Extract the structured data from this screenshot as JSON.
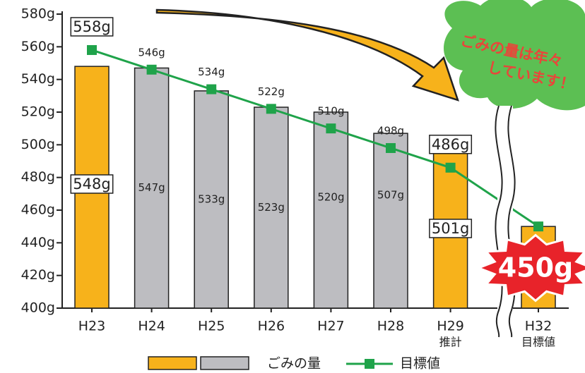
{
  "chart_data": {
    "type": "bar",
    "categories": [
      "H23",
      "H24",
      "H25",
      "H26",
      "H27",
      "H28",
      "H29",
      "H32"
    ],
    "category_sublabels": [
      null,
      null,
      null,
      null,
      null,
      null,
      "推計",
      "目標値"
    ],
    "ylim": [
      400,
      580
    ],
    "yticks": [
      {
        "value": 400,
        "label": "400g"
      },
      {
        "value": 420,
        "label": "420g"
      },
      {
        "value": 440,
        "label": "440g"
      },
      {
        "value": 460,
        "label": "460g"
      },
      {
        "value": 480,
        "label": "480g"
      },
      {
        "value": 500,
        "label": "500g"
      },
      {
        "value": 520,
        "label": "520g"
      },
      {
        "value": 540,
        "label": "540g"
      },
      {
        "value": 560,
        "label": "560g"
      },
      {
        "value": 580,
        "label": "580g"
      }
    ],
    "series": [
      {
        "name": "ごみの量",
        "type": "bar",
        "colors": [
          "#f7b21b",
          "#bdbdc1",
          "#bdbdc1",
          "#bdbdc1",
          "#bdbdc1",
          "#bdbdc1",
          "#f7b21b",
          "#f7b21b"
        ],
        "values": [
          548,
          547,
          533,
          523,
          520,
          507,
          501,
          450
        ],
        "value_labels": [
          "548g",
          "547g",
          "533g",
          "523g",
          "520g",
          "507g",
          "501g",
          "450g"
        ]
      },
      {
        "name": "目標値",
        "type": "line",
        "color": "#1fa34a",
        "values": [
          558,
          546,
          534,
          522,
          510,
          498,
          486,
          450
        ],
        "value_labels": [
          "558g",
          "546g",
          "534g",
          "522g",
          "510g",
          "498g",
          "486g",
          null
        ]
      }
    ],
    "annotation": [
      "ごみの量は年々",
      "しています！"
    ]
  }
}
